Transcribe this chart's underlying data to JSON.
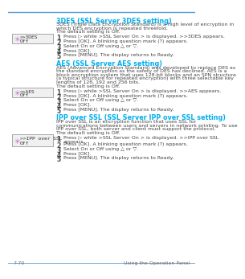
{
  "bg_color": "#ffffff",
  "top_line_color": "#5B9BD5",
  "footer_line_color": "#808080",
  "page_num": "7-70",
  "footer_right": "Using the Operation Panel",
  "section1_title": "3DES (SSL Server 3DES setting)",
  "section1_body1": "3DES (Triple Data Encryption Standard) is a high level of encryption in\nwhich DES encryption is repeated threefold.",
  "section1_default": "The default setting is Off.",
  "section1_steps": [
    "Press ▷ while >SSL Server On > is displayed. >>3DES appears.",
    "Press [OK]. A blinking question mark (?) appears.",
    "Select On or Off using △ or ▽.",
    "Press [OK].",
    "Press [MENU]. The display returns to Ready."
  ],
  "section1_box1": ">>3DES",
  "section1_box2": "Off",
  "section2_title": "AES (SSL Server AES setting)",
  "section2_body1": "AES (Advanced Encryption Standard) was developed to replace DES as\nthe standard encryption as the safety of DES has declined. AES is a\nblock encryption system that uses 128-bit blocks and an SPN structure\n(a typical structure for repeated encryption) with three selectable key\nlengths of 128, 192 and 256 bits.",
  "section2_default": "The default setting is Off.",
  "section2_steps": [
    "Press ▷ while >SSL Server On > is displayed. >>AES appears.",
    "Press [OK]. A blinking question mark (?) appears.",
    "Select On or Off using △ or ▽.",
    "Press [OK].",
    "Press [MENU]. The display returns to Ready."
  ],
  "section2_box1": ">>AES",
  "section2_box2": "Off",
  "section3_title": "IPP over SSL (SSL Server IPP over SSL setting)",
  "section3_body1": "IPP over SSL is an encryption function that uses SSL for\ncommunications between users and servers in network printing. To use\nIPP over SSL, both server and client must support the protocol.",
  "section3_default": "The default setting is Off.",
  "section3_steps": [
    "Press ▷ while >SSL Server On > is displayed. >>IPP over SSL\nappears.",
    "Press [OK]. A blinking question mark (?) appears.",
    "Select On or Off using △ or ▽.",
    "Press [OK].",
    "Press [MENU]. The display returns to Ready."
  ],
  "section3_box1": ">>IPP over SSL",
  "section3_box2": "Off",
  "snowflake_color": "#CC66CC",
  "box_bg": "#f0f0f0",
  "box_border": "#999999",
  "text_color": "#444444",
  "mono_color": "#333333",
  "title_color": "#00AEEF",
  "footer_color": "#666666",
  "line_color": "#5B9BD5"
}
